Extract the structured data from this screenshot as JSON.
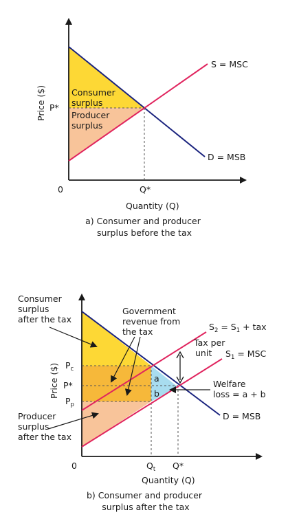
{
  "diagram_a": {
    "y_axis_label": "Price ($)",
    "x_axis_label": "Quantity (Q)",
    "origin_label": "0",
    "p_star_label": "P*",
    "q_star_label": "Q*",
    "supply_label": "S = MSC",
    "demand_label": "D = MSB",
    "consumer_surplus_label": [
      "Consumer",
      "surplus"
    ],
    "producer_surplus_label": [
      "Producer",
      "surplus"
    ],
    "caption": [
      "a) Consumer and producer",
      "surplus before the tax"
    ],
    "colors": {
      "consumer_surplus": "#fdd835",
      "producer_surplus": "#f8c49a",
      "demand": "#1a237e",
      "supply": "#e0245e"
    }
  },
  "diagram_b": {
    "y_axis_label": "Price ($)",
    "x_axis_label": "Quantity (Q)",
    "origin_label": "0",
    "pc_label": "P",
    "pc_sub": "c",
    "p_star_label": "P*",
    "pp_label": "P",
    "pp_sub": "p",
    "qt_label": "Q",
    "qt_sub": "t",
    "q_star_label": "Q*",
    "s2_label": {
      "a": "S",
      "a_sub": "2",
      "b": " = S",
      "b_sub": "1",
      "c": " + tax"
    },
    "s1_label": {
      "a": "S",
      "a_sub": "1",
      "b": " = MSC"
    },
    "demand_label": "D = MSB",
    "tax_per_unit_label": [
      "Tax per",
      "unit"
    ],
    "welfare_loss_label": [
      "Welfare",
      "loss = a + b"
    ],
    "area_a_label": "a",
    "area_b_label": "b",
    "consumer_surplus_label": [
      "Consumer",
      "surplus",
      "after the tax"
    ],
    "government_revenue_label": [
      "Government",
      "revenue from",
      "the tax"
    ],
    "producer_surplus_label": [
      "Producer",
      "surplus",
      "after the tax"
    ],
    "caption": [
      "b) Consumer and producer",
      "surplus after the tax"
    ],
    "colors": {
      "consumer_surplus": "#fdd835",
      "government_revenue": "#f6b83a",
      "producer_surplus": "#f8c49a",
      "welfare_loss": "#a8dcef",
      "demand": "#1a237e",
      "supply": "#e0245e"
    }
  }
}
